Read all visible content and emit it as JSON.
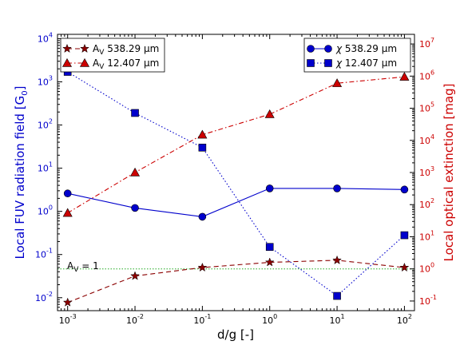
{
  "chart_data": {
    "type": "line",
    "xlabel": "d/g [-]",
    "ylabel_left": "Local FUV radiation field [G0]",
    "ylabel_left_main": "Local FUV radiation field [G",
    "ylabel_left_sub": "0",
    "ylabel_left_close": "]",
    "ylabel_right": "Local optical extinction [mag]",
    "x": [
      0.001,
      0.01,
      0.1,
      1,
      10,
      100
    ],
    "x_ticks": [
      {
        "base": "10",
        "exp": "-3"
      },
      {
        "base": "10",
        "exp": "-2"
      },
      {
        "base": "10",
        "exp": "-1"
      },
      {
        "base": "10",
        "exp": "0"
      },
      {
        "base": "10",
        "exp": "1"
      },
      {
        "base": "10",
        "exp": "2"
      }
    ],
    "y_left_ticks": [
      {
        "base": "10",
        "exp": "-2"
      },
      {
        "base": "10",
        "exp": "-1"
      },
      {
        "base": "10",
        "exp": "0"
      },
      {
        "base": "10",
        "exp": "1"
      },
      {
        "base": "10",
        "exp": "2"
      },
      {
        "base": "10",
        "exp": "3"
      },
      {
        "base": "10",
        "exp": "4"
      }
    ],
    "y_right_ticks": [
      {
        "base": "10",
        "exp": "-1"
      },
      {
        "base": "10",
        "exp": "0"
      },
      {
        "base": "10",
        "exp": "1"
      },
      {
        "base": "10",
        "exp": "2"
      },
      {
        "base": "10",
        "exp": "3"
      },
      {
        "base": "10",
        "exp": "4"
      },
      {
        "base": "10",
        "exp": "5"
      },
      {
        "base": "10",
        "exp": "6"
      },
      {
        "base": "10",
        "exp": "7"
      }
    ],
    "xlim": [
      0.000707,
      141
    ],
    "ylim_left_log": [
      -2.3,
      4.1
    ],
    "ylim_right_log": [
      -1.3,
      7.3
    ],
    "series": [
      {
        "name": "χ 538.29 μm",
        "legend_sym": "χ",
        "legend_rest": " 538.29 μm",
        "axis": "left",
        "marker": "circle",
        "color": "#0000cc",
        "dash": "solid",
        "values": [
          2.6,
          1.2,
          0.75,
          3.4,
          3.4,
          3.2
        ]
      },
      {
        "name": "χ 12.407 μm",
        "legend_sym": "χ",
        "legend_rest": " 12.407 μm",
        "axis": "left",
        "marker": "square",
        "color": "#0000cc",
        "dash": "dotted",
        "values": [
          1700,
          190,
          30,
          0.15,
          0.011,
          0.28
        ]
      },
      {
        "name": "AV 538.29 μm",
        "legend_sym": "A",
        "legend_sub": "V",
        "legend_rest": " 538.29 μm",
        "axis": "right",
        "marker": "star",
        "color": "#8b0000",
        "dash": "dashed",
        "values": [
          0.09,
          0.6,
          1.1,
          1.6,
          1.85,
          1.1
        ]
      },
      {
        "name": "AV 12.407 μm",
        "legend_sym": "A",
        "legend_sub": "V",
        "legend_rest": " 12.407 μm",
        "axis": "right",
        "marker": "triangle",
        "color": "#cc0000",
        "dash": "dashdot",
        "values": [
          55,
          1000,
          15000,
          65000,
          600000,
          950000
        ]
      }
    ],
    "annotation": {
      "text_main": "A",
      "text_sub": "V",
      "text_rest": " = 1",
      "ref_value_right": 1,
      "line_color": "#22aa22"
    },
    "legend_left_placement": "upper-left",
    "legend_right_placement": "upper-right",
    "colors": {
      "left_axis": "#0000cc",
      "right_axis": "#cc0000"
    }
  }
}
